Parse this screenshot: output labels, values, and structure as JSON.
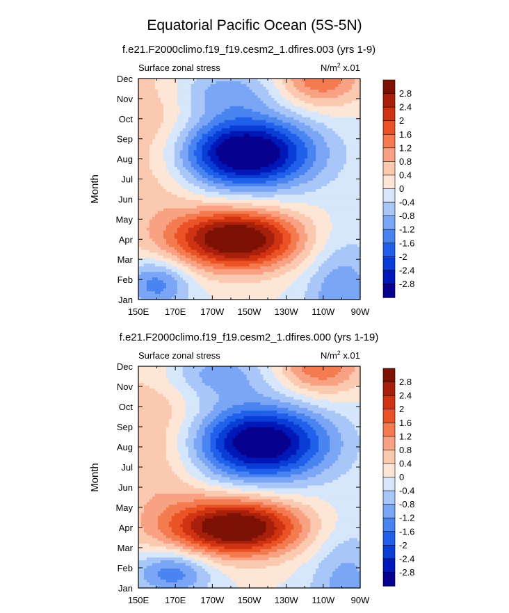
{
  "main_title": "Equatorial Pacific Ocean (5S-5N)",
  "chart_data": [
    {
      "type": "heatmap",
      "title": "f.e21.F2000climo.f19_f19.cesm2_1.dfires.003 (yrs 1-9)",
      "left_label": "Surface zonal stress",
      "right_label_base": "N/m",
      "right_label_sup": "2",
      "right_label_rest": " x.01",
      "ylabel": "Month",
      "x_ticks": [
        "150E",
        "170E",
        "170W",
        "150W",
        "130W",
        "110W",
        "90W"
      ],
      "y_ticks": [
        "Jan",
        "Feb",
        "Mar",
        "Apr",
        "May",
        "Jun",
        "Jul",
        "Aug",
        "Sep",
        "Oct",
        "Nov",
        "Dec"
      ],
      "xlim": [
        150,
        270
      ],
      "ylim": [
        1,
        12
      ],
      "colorbar_labels": [
        "2.8",
        "2.4",
        "2",
        "1.6",
        "1.2",
        "0.8",
        "0.4",
        "0",
        "-0.4",
        "-0.8",
        "-1.2",
        "-1.6",
        "-2",
        "-2.4",
        "-2.8"
      ],
      "features": [
        {
          "lon": 208,
          "month": 8.3,
          "amp": -3.6,
          "slon": 26,
          "smon": 1.25,
          "rot": -0.045
        },
        {
          "lon": 203,
          "month": 4.0,
          "amp": 3.5,
          "slon": 24,
          "smon": 1.05,
          "rot": -0.042
        },
        {
          "lon": 160,
          "month": 1.8,
          "amp": -1.5,
          "slon": 13,
          "smon": 0.9,
          "rot": 0
        },
        {
          "lon": 195,
          "month": 11.4,
          "amp": -1.0,
          "slon": 22,
          "smon": 0.9,
          "rot": 0
        },
        {
          "lon": 248,
          "month": 12.0,
          "amp": 1.6,
          "slon": 16,
          "smon": 1.0,
          "rot": 0
        },
        {
          "lon": 158,
          "month": 9.0,
          "amp": 0.9,
          "slon": 20,
          "smon": 3.5,
          "rot": 0
        },
        {
          "lon": 260,
          "month": 1.0,
          "amp": -1.2,
          "slon": 14,
          "smon": 2.2,
          "rot": 0
        }
      ]
    },
    {
      "type": "heatmap",
      "title": "f.e21.F2000climo.f19_f19.cesm2_1.dfires.000 (yrs 1-19)",
      "left_label": "Surface zonal stress",
      "right_label_base": "N/m",
      "right_label_sup": "2",
      "right_label_rest": " x.01",
      "ylabel": "Month",
      "x_ticks": [
        "150E",
        "170E",
        "170W",
        "150W",
        "130W",
        "110W",
        "90W"
      ],
      "y_ticks": [
        "Jan",
        "Feb",
        "Mar",
        "Apr",
        "May",
        "Jun",
        "Jul",
        "Aug",
        "Sep",
        "Oct",
        "Nov",
        "Dec"
      ],
      "xlim": [
        150,
        270
      ],
      "ylim": [
        1,
        12
      ],
      "colorbar_labels": [
        "2.8",
        "2.4",
        "2",
        "1.6",
        "1.2",
        "0.8",
        "0.4",
        "0",
        "-0.4",
        "-0.8",
        "-1.2",
        "-1.6",
        "-2",
        "-2.4",
        "-2.8"
      ],
      "features": [
        {
          "lon": 216,
          "month": 8.2,
          "amp": -3.4,
          "slon": 26,
          "smon": 1.3,
          "rot": -0.045
        },
        {
          "lon": 203,
          "month": 4.0,
          "amp": 3.5,
          "slon": 25,
          "smon": 1.0,
          "rot": -0.045
        },
        {
          "lon": 168,
          "month": 1.8,
          "amp": -1.6,
          "slon": 15,
          "smon": 0.8,
          "rot": 0
        },
        {
          "lon": 190,
          "month": 11.6,
          "amp": -1.1,
          "slon": 22,
          "smon": 0.9,
          "rot": 0
        },
        {
          "lon": 248,
          "month": 12.0,
          "amp": 1.6,
          "slon": 16,
          "smon": 1.0,
          "rot": 0
        },
        {
          "lon": 160,
          "month": 8.5,
          "amp": 0.9,
          "slon": 20,
          "smon": 3.5,
          "rot": 0
        },
        {
          "lon": 262,
          "month": 1.0,
          "amp": -1.0,
          "slon": 14,
          "smon": 2.2,
          "rot": 0
        }
      ]
    }
  ],
  "colors": {
    "levels": [
      "#08008f",
      "#0018b8",
      "#0a3cd6",
      "#2060ea",
      "#4a84f0",
      "#7aa6f5",
      "#a8c6f8",
      "#d6e6fb",
      "#fde6d6",
      "#fbc8b0",
      "#f8a283",
      "#f47a50",
      "#ea5326",
      "#cf3311",
      "#a8200b",
      "#7d1104"
    ]
  }
}
